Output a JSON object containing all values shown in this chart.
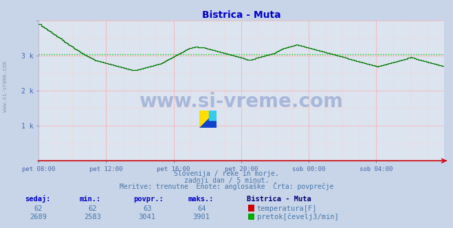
{
  "title": "Bistrica - Muta",
  "title_color": "#0000cc",
  "bg_color": "#c8d4e8",
  "plot_bg_color": "#dce4f0",
  "grid_color_major": "#ff9999",
  "grid_color_minor": "#ffcccc",
  "x_axis_color": "#cc0000",
  "tick_color": "#4466aa",
  "watermark_text": "www.si-vreme.com",
  "watermark_color": "#3355aa",
  "watermark_alpha": 0.3,
  "subtitle_color": "#4477aa",
  "footer_label_color": "#0000cc",
  "footer_value_color": "#4477aa",
  "footer_bold_color": "#000077",
  "x_labels": [
    "pet 08:00",
    "pet 12:00",
    "pet 16:00",
    "pet 20:00",
    "sob 00:00",
    "sob 04:00"
  ],
  "x_ticks": [
    0.0,
    0.1667,
    0.3333,
    0.5,
    0.6667,
    0.8333
  ],
  "ylim": [
    0,
    4000
  ],
  "avg_line_value": 3041,
  "avg_line_color": "#00cc00",
  "flow_line_color": "#007700",
  "legend_temp_color": "#cc0000",
  "legend_flow_color": "#00aa00",
  "temp_value": 62,
  "flow_value": 2689,
  "flow_min": 2583,
  "flow_avg": 3041,
  "flow_max": 3901,
  "temp_min": 62,
  "temp_avg": 63,
  "temp_max": 64,
  "flow_data": [
    3901,
    3901,
    3850,
    3820,
    3800,
    3780,
    3760,
    3730,
    3700,
    3680,
    3650,
    3620,
    3600,
    3580,
    3550,
    3530,
    3500,
    3480,
    3450,
    3430,
    3400,
    3380,
    3350,
    3320,
    3300,
    3280,
    3250,
    3220,
    3200,
    3180,
    3150,
    3130,
    3100,
    3080,
    3060,
    3040,
    3020,
    3000,
    2980,
    2960,
    2940,
    2920,
    2900,
    2880,
    2870,
    2860,
    2850,
    2840,
    2830,
    2820,
    2810,
    2800,
    2790,
    2780,
    2770,
    2760,
    2750,
    2740,
    2730,
    2720,
    2710,
    2700,
    2690,
    2680,
    2670,
    2660,
    2650,
    2640,
    2630,
    2620,
    2610,
    2600,
    2590,
    2583,
    2583,
    2583,
    2590,
    2600,
    2610,
    2620,
    2630,
    2640,
    2650,
    2660,
    2670,
    2680,
    2690,
    2700,
    2710,
    2720,
    2730,
    2740,
    2750,
    2760,
    2770,
    2780,
    2800,
    2820,
    2840,
    2860,
    2880,
    2900,
    2920,
    2940,
    2960,
    2980,
    3000,
    3020,
    3040,
    3060,
    3080,
    3100,
    3120,
    3140,
    3160,
    3180,
    3200,
    3210,
    3220,
    3230,
    3240,
    3250,
    3250,
    3250,
    3240,
    3240,
    3240,
    3240,
    3230,
    3220,
    3210,
    3200,
    3190,
    3180,
    3170,
    3160,
    3150,
    3140,
    3130,
    3120,
    3110,
    3100,
    3090,
    3080,
    3070,
    3060,
    3050,
    3040,
    3030,
    3020,
    3010,
    3000,
    2990,
    2980,
    2970,
    2960,
    2950,
    2940,
    2930,
    2920,
    2910,
    2900,
    2890,
    2890,
    2890,
    2890,
    2900,
    2910,
    2920,
    2930,
    2940,
    2950,
    2960,
    2970,
    2980,
    2990,
    3000,
    3010,
    3020,
    3030,
    3040,
    3050,
    3060,
    3080,
    3100,
    3120,
    3140,
    3160,
    3180,
    3200,
    3210,
    3220,
    3230,
    3240,
    3250,
    3260,
    3270,
    3280,
    3290,
    3300,
    3310,
    3310,
    3300,
    3290,
    3280,
    3270,
    3260,
    3250,
    3240,
    3230,
    3220,
    3210,
    3200,
    3190,
    3180,
    3170,
    3160,
    3150,
    3140,
    3130,
    3120,
    3110,
    3100,
    3090,
    3080,
    3070,
    3060,
    3050,
    3040,
    3030,
    3020,
    3010,
    3000,
    2990,
    2980,
    2970,
    2960,
    2950,
    2940,
    2930,
    2920,
    2910,
    2900,
    2890,
    2880,
    2870,
    2860,
    2850,
    2840,
    2830,
    2820,
    2810,
    2800,
    2790,
    2780,
    2770,
    2760,
    2750,
    2740,
    2730,
    2720,
    2710,
    2700,
    2690,
    2700,
    2710,
    2720,
    2730,
    2740,
    2750,
    2760,
    2770,
    2780,
    2790,
    2800,
    2810,
    2820,
    2830,
    2840,
    2850,
    2860,
    2870,
    2880,
    2890,
    2900,
    2910,
    2920,
    2930,
    2940,
    2950,
    2940,
    2930,
    2920,
    2910,
    2900,
    2890,
    2880,
    2870,
    2860,
    2850,
    2840,
    2830,
    2820,
    2810,
    2800,
    2790,
    2780,
    2770,
    2760,
    2750,
    2740,
    2730,
    2720,
    2710,
    2700,
    2690
  ]
}
